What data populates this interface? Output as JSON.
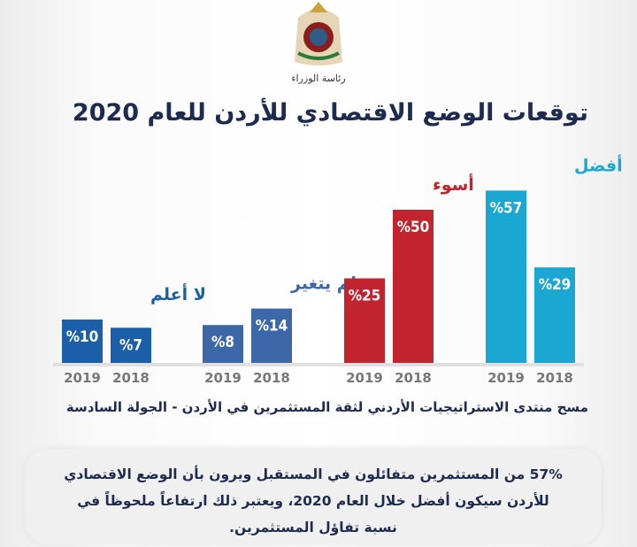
{
  "header": {
    "ministry": "رئاسة الوزراء",
    "title": "توقعات الوضع الاقتصادي للأردن للعام 2020"
  },
  "chart_data": {
    "type": "bar",
    "title": "توقعات الوضع الاقتصادي للأردن للعام 2020",
    "categories": [
      "لا أعلم",
      "لم يتغير",
      "أسوء",
      "أفضل"
    ],
    "x_labels": [
      "2019",
      "2018"
    ],
    "series": [
      {
        "name": "2019",
        "values": [
          10,
          8,
          25,
          57
        ]
      },
      {
        "name": "2018",
        "values": [
          7,
          14,
          50,
          29
        ]
      }
    ],
    "value_format": "%{v}",
    "colors": [
      "#1b5fa9",
      "#3c68aa",
      "#c1242f",
      "#1aa8d3"
    ],
    "grid": false,
    "legend": "none"
  },
  "source": "مسح منتدى الاستراتيجيات الأردني لثقة المستثمرين في الأردن - الجولة السادسة",
  "note": {
    "text": "57% من المستثمرين متفائلون في المستقبل ويرون بأن الوضع الاقتصادي للأردن  سيكون أفضل خلال العام 2020، ويعتبر ذلك ارتفاعاً ملحوظاً في نسبة تفاؤل  المستثمرين."
  }
}
